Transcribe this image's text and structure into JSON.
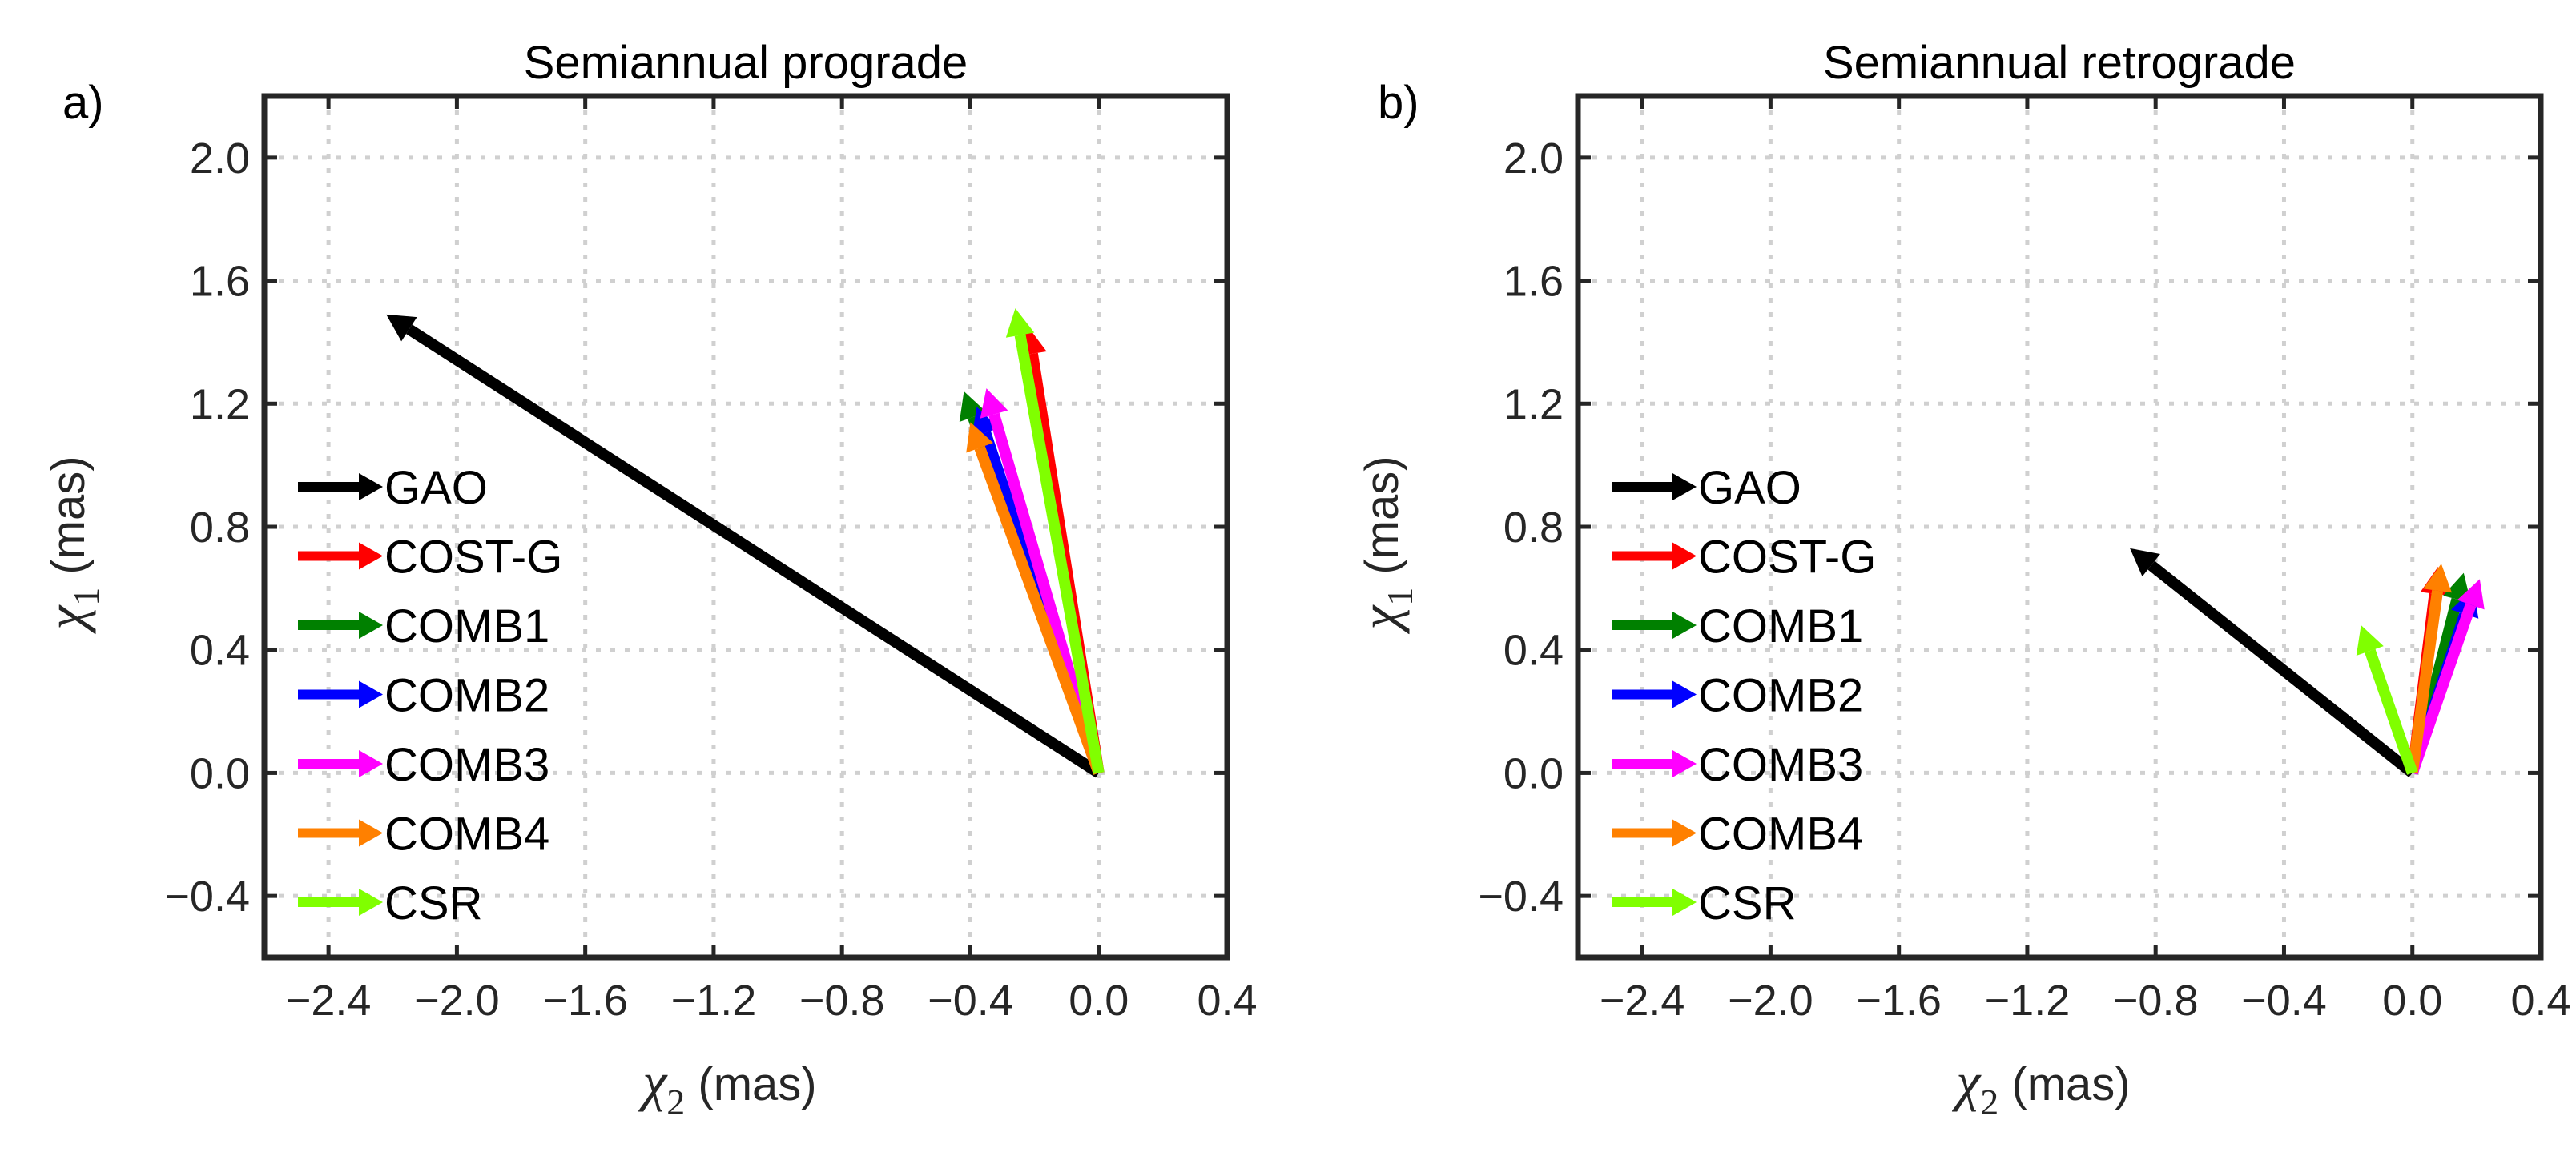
{
  "chart_data": [
    {
      "type": "quiver",
      "panel_label": "a)",
      "title": "Semiannual prograde",
      "xlabel": {
        "symbol": "χ",
        "subscript": "2",
        "unit": " (mas)"
      },
      "ylabel": {
        "symbol": "χ",
        "subscript": "1",
        "unit": " (mas)"
      },
      "xlim": [
        -2.6,
        0.4
      ],
      "ylim": [
        -0.6,
        2.2
      ],
      "xticks": [
        -2.4,
        -2.0,
        -1.6,
        -1.2,
        -0.8,
        -0.4,
        0.0,
        0.4
      ],
      "xtick_labels": [
        "−2.4",
        "−2.0",
        "−1.6",
        "−1.2",
        "−0.8",
        "−0.4",
        "0.0",
        "0.4"
      ],
      "yticks": [
        -0.4,
        0.0,
        0.4,
        0.8,
        1.2,
        1.6,
        2.0
      ],
      "ytick_labels": [
        "−0.4",
        "0.0",
        "0.4",
        "0.8",
        "1.2",
        "1.6",
        "2.0"
      ],
      "grid": true,
      "legend_position": "lower-left",
      "series": [
        {
          "name": "GAO",
          "color": "#000000",
          "x": [
            0,
            -2.22
          ],
          "y": [
            0,
            1.49
          ]
        },
        {
          "name": "COST-G",
          "color": "#ff0000",
          "x": [
            0,
            -0.22
          ],
          "y": [
            0,
            1.45
          ]
        },
        {
          "name": "COMB1",
          "color": "#008000",
          "x": [
            0,
            -0.42
          ],
          "y": [
            0,
            1.24
          ]
        },
        {
          "name": "COMB2",
          "color": "#0000ff",
          "x": [
            0,
            -0.38
          ],
          "y": [
            0,
            1.19
          ]
        },
        {
          "name": "COMB3",
          "color": "#ff00ff",
          "x": [
            0,
            -0.35
          ],
          "y": [
            0,
            1.25
          ]
        },
        {
          "name": "COMB4",
          "color": "#ff8000",
          "x": [
            0,
            -0.4
          ],
          "y": [
            0,
            1.14
          ]
        },
        {
          "name": "CSR",
          "color": "#80ff00",
          "x": [
            0,
            -0.26
          ],
          "y": [
            0,
            1.51
          ]
        }
      ]
    },
    {
      "type": "quiver",
      "panel_label": "b)",
      "title": "Semiannual retrograde",
      "xlabel": {
        "symbol": "χ",
        "subscript": "2",
        "unit": " (mas)"
      },
      "ylabel": {
        "symbol": "χ",
        "subscript": "1",
        "unit": " (mas)"
      },
      "xlim": [
        -2.6,
        0.4
      ],
      "ylim": [
        -0.6,
        2.2
      ],
      "xticks": [
        -2.4,
        -2.0,
        -1.6,
        -1.2,
        -0.8,
        -0.4,
        0.0,
        0.4
      ],
      "xtick_labels": [
        "−2.4",
        "−2.0",
        "−1.6",
        "−1.2",
        "−0.8",
        "−0.4",
        "0.0",
        "0.4"
      ],
      "yticks": [
        -0.4,
        0.0,
        0.4,
        0.8,
        1.2,
        1.6,
        2.0
      ],
      "ytick_labels": [
        "−0.4",
        "0.0",
        "0.4",
        "0.8",
        "1.2",
        "1.6",
        "2.0"
      ],
      "grid": true,
      "legend_position": "lower-left",
      "series": [
        {
          "name": "GAO",
          "color": "#000000",
          "x": [
            0,
            -0.88
          ],
          "y": [
            0,
            0.73
          ]
        },
        {
          "name": "COST-G",
          "color": "#ff0000",
          "x": [
            0,
            0.08
          ],
          "y": [
            0,
            0.67
          ]
        },
        {
          "name": "COMB1",
          "color": "#008000",
          "x": [
            0,
            0.16
          ],
          "y": [
            0,
            0.65
          ]
        },
        {
          "name": "COMB2",
          "color": "#0000ff",
          "x": [
            0,
            0.19
          ],
          "y": [
            0,
            0.6
          ]
        },
        {
          "name": "COMB3",
          "color": "#ff00ff",
          "x": [
            0,
            0.21
          ],
          "y": [
            0,
            0.63
          ]
        },
        {
          "name": "COMB4",
          "color": "#ff8000",
          "x": [
            0,
            0.09
          ],
          "y": [
            0,
            0.68
          ]
        },
        {
          "name": "CSR",
          "color": "#80ff00",
          "x": [
            0,
            -0.16
          ],
          "y": [
            0,
            0.48
          ]
        }
      ]
    }
  ]
}
